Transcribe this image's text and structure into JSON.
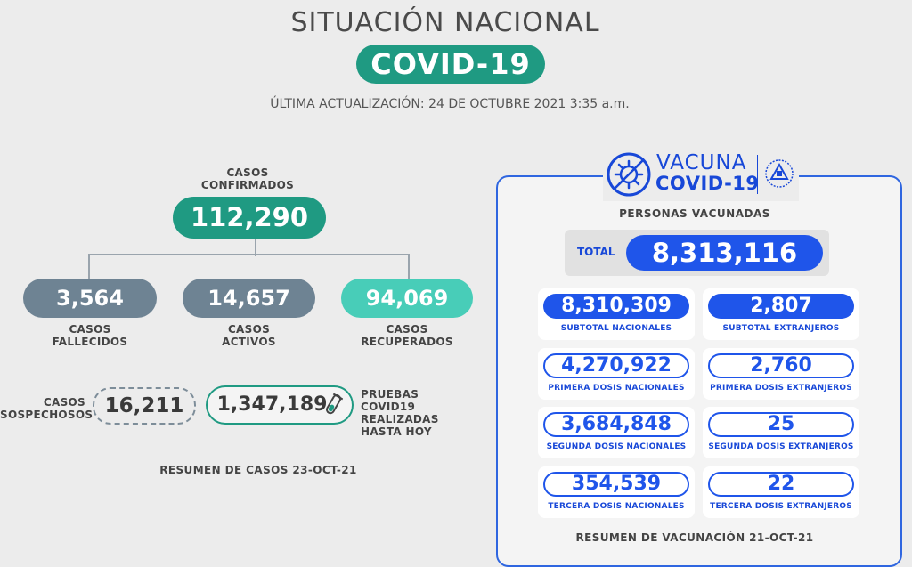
{
  "header": {
    "title": "SITUACIÓN NACIONAL",
    "badge": "COVID-19",
    "updated": "ÚLTIMA ACTUALIZACIÓN: 24 DE OCTUBRE 2021 3:35 a.m."
  },
  "cases": {
    "confirmed_label_1": "CASOS",
    "confirmed_label_2": "CONFIRMADOS",
    "confirmed": "112,290",
    "deceased": "3,564",
    "deceased_label_1": "CASOS",
    "deceased_label_2": "FALLECIDOS",
    "active": "14,657",
    "active_label_1": "CASOS",
    "active_label_2": "ACTIVOS",
    "recovered": "94,069",
    "recovered_label_1": "CASOS",
    "recovered_label_2": "RECUPERADOS",
    "suspected_label_1": "CASOS",
    "suspected_label_2": "SOSPECHOSOS",
    "suspected": "16,211",
    "tests": "1,347,189",
    "tests_label_1": "PRUEBAS COVID19",
    "tests_label_2": "REALIZADAS",
    "tests_label_3": "HASTA HOY",
    "summary": "RESUMEN DE CASOS 23-OCT-21",
    "colors": {
      "green": "#1f9a82",
      "slate": "#6e8393",
      "mint": "#48cdb8"
    }
  },
  "vaccine": {
    "logo_word1": "VACUNA",
    "logo_word2": "COVID-19",
    "logo_icon": "virus-crossed-icon",
    "seal_icon": "el-salvador-seal-icon",
    "persons_label": "PERSONAS VACUNADAS",
    "total_label": "TOTAL",
    "total": "8,313,116",
    "cards": [
      {
        "value": "8,310,309",
        "caption": "SUBTOTAL NACIONALES"
      },
      {
        "value": "2,807",
        "caption": "SUBTOTAL EXTRANJEROS"
      },
      {
        "value": "4,270,922",
        "caption": "PRIMERA DOSIS NACIONALES"
      },
      {
        "value": "2,760",
        "caption": "PRIMERA DOSIS EXTRANJEROS"
      },
      {
        "value": "3,684,848",
        "caption": "SEGUNDA DOSIS NACIONALES"
      },
      {
        "value": "25",
        "caption": "SEGUNDA DOSIS EXTRANJEROS"
      },
      {
        "value": "354,539",
        "caption": "TERCERA DOSIS NACIONALES"
      },
      {
        "value": "22",
        "caption": "TERCERA DOSIS EXTRANJEROS"
      }
    ],
    "summary": "RESUMEN DE VACUNACIÓN 21-OCT-21",
    "colors": {
      "blue": "#1f55ea",
      "border": "#2f66e0"
    }
  }
}
